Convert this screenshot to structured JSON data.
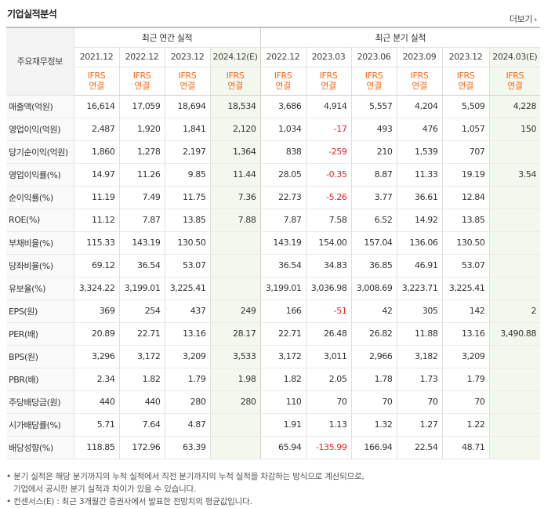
{
  "header": {
    "title": "기업실적분석",
    "more_label": "더보기",
    "more_arrow": "›"
  },
  "table": {
    "row_header_label": "주요재무정보",
    "annual_group_label": "최근 연간 실적",
    "quarter_group_label": "최근 분기 실적",
    "periods": [
      "2021.12",
      "2022.12",
      "2023.12",
      "2024.12(E)",
      "2022.12",
      "2023.03",
      "2023.06",
      "2023.09",
      "2023.12",
      "2024.03(E)"
    ],
    "ifrs_top": "IFRS",
    "ifrs_bottom": "연결",
    "rows": [
      {
        "label": "매출액(억원)",
        "values": [
          "16,614",
          "17,059",
          "18,694",
          "18,534",
          "3,686",
          "4,914",
          "5,557",
          "4,204",
          "5,509",
          "4,228"
        ]
      },
      {
        "label": "영업이익(억원)",
        "values": [
          "2,487",
          "1,920",
          "1,841",
          "2,120",
          "1,034",
          "-17",
          "493",
          "476",
          "1,057",
          "150"
        ]
      },
      {
        "label": "당기순이익(억원)",
        "values": [
          "1,860",
          "1,278",
          "2,197",
          "1,364",
          "838",
          "-259",
          "210",
          "1,539",
          "707",
          ""
        ]
      },
      {
        "label": "영업이익률(%)",
        "values": [
          "14.97",
          "11.26",
          "9.85",
          "11.44",
          "28.05",
          "-0.35",
          "8.87",
          "11.33",
          "19.19",
          "3.54"
        ]
      },
      {
        "label": "순이익률(%)",
        "values": [
          "11.19",
          "7.49",
          "11.75",
          "7.36",
          "22.73",
          "-5.26",
          "3.77",
          "36.61",
          "12.84",
          ""
        ]
      },
      {
        "label": "ROE(%)",
        "values": [
          "11.12",
          "7.87",
          "13.85",
          "7.88",
          "7.87",
          "7.58",
          "6.52",
          "14.92",
          "13.85",
          ""
        ]
      },
      {
        "label": "부채비율(%)",
        "values": [
          "115.33",
          "143.19",
          "130.50",
          "",
          "143.19",
          "154.00",
          "157.04",
          "136.06",
          "130.50",
          ""
        ]
      },
      {
        "label": "당좌비율(%)",
        "values": [
          "69.12",
          "36.54",
          "53.07",
          "",
          "36.54",
          "34.83",
          "36.85",
          "46.91",
          "53.07",
          ""
        ]
      },
      {
        "label": "유보율(%)",
        "values": [
          "3,324.22",
          "3,199.01",
          "3,225.41",
          "",
          "3,199.01",
          "3,036.98",
          "3,008.69",
          "3,223.71",
          "3,225.41",
          ""
        ]
      },
      {
        "label": "EPS(원)",
        "values": [
          "369",
          "254",
          "437",
          "249",
          "166",
          "-51",
          "42",
          "305",
          "142",
          "2"
        ]
      },
      {
        "label": "PER(배)",
        "values": [
          "20.89",
          "22.71",
          "13.16",
          "28.17",
          "22.71",
          "26.48",
          "26.82",
          "11.88",
          "13.16",
          "3,490.88"
        ]
      },
      {
        "label": "BPS(원)",
        "values": [
          "3,296",
          "3,172",
          "3,209",
          "3,533",
          "3,172",
          "3,011",
          "2,966",
          "3,182",
          "3,209",
          ""
        ]
      },
      {
        "label": "PBR(배)",
        "values": [
          "2.34",
          "1.82",
          "1.79",
          "1.98",
          "1.82",
          "2.05",
          "1.78",
          "1.73",
          "1.79",
          ""
        ]
      },
      {
        "label": "주당배당금(원)",
        "values": [
          "440",
          "440",
          "280",
          "280",
          "110",
          "70",
          "70",
          "70",
          "70",
          ""
        ]
      },
      {
        "label": "시가배당률(%)",
        "values": [
          "5.71",
          "7.64",
          "4.87",
          "",
          "1.91",
          "1.13",
          "1.32",
          "1.27",
          "1.22",
          ""
        ]
      },
      {
        "label": "배당성향(%)",
        "values": [
          "118.85",
          "172.96",
          "63.39",
          "",
          "65.94",
          "-135.99",
          "166.94",
          "22.54",
          "48.71",
          ""
        ]
      }
    ]
  },
  "notes": {
    "line1": "• 분기 실적은 해당 분기까지의 누적 실적에서 직전 분기까지의 누적 실적을 차감하는 방식으로 계산되므로,",
    "line2": "기업에서 공시한 분기 실적과 차이가 있을 수 있습니다.",
    "line3": "• 컨센서스(E) : 최근 3개월간 증권사에서 발표한 전망치의 평균값입니다."
  },
  "colors": {
    "negative": "#e0242b",
    "ifrs": "#f26b1d",
    "estimate_bg": "#f3f8ee"
  }
}
